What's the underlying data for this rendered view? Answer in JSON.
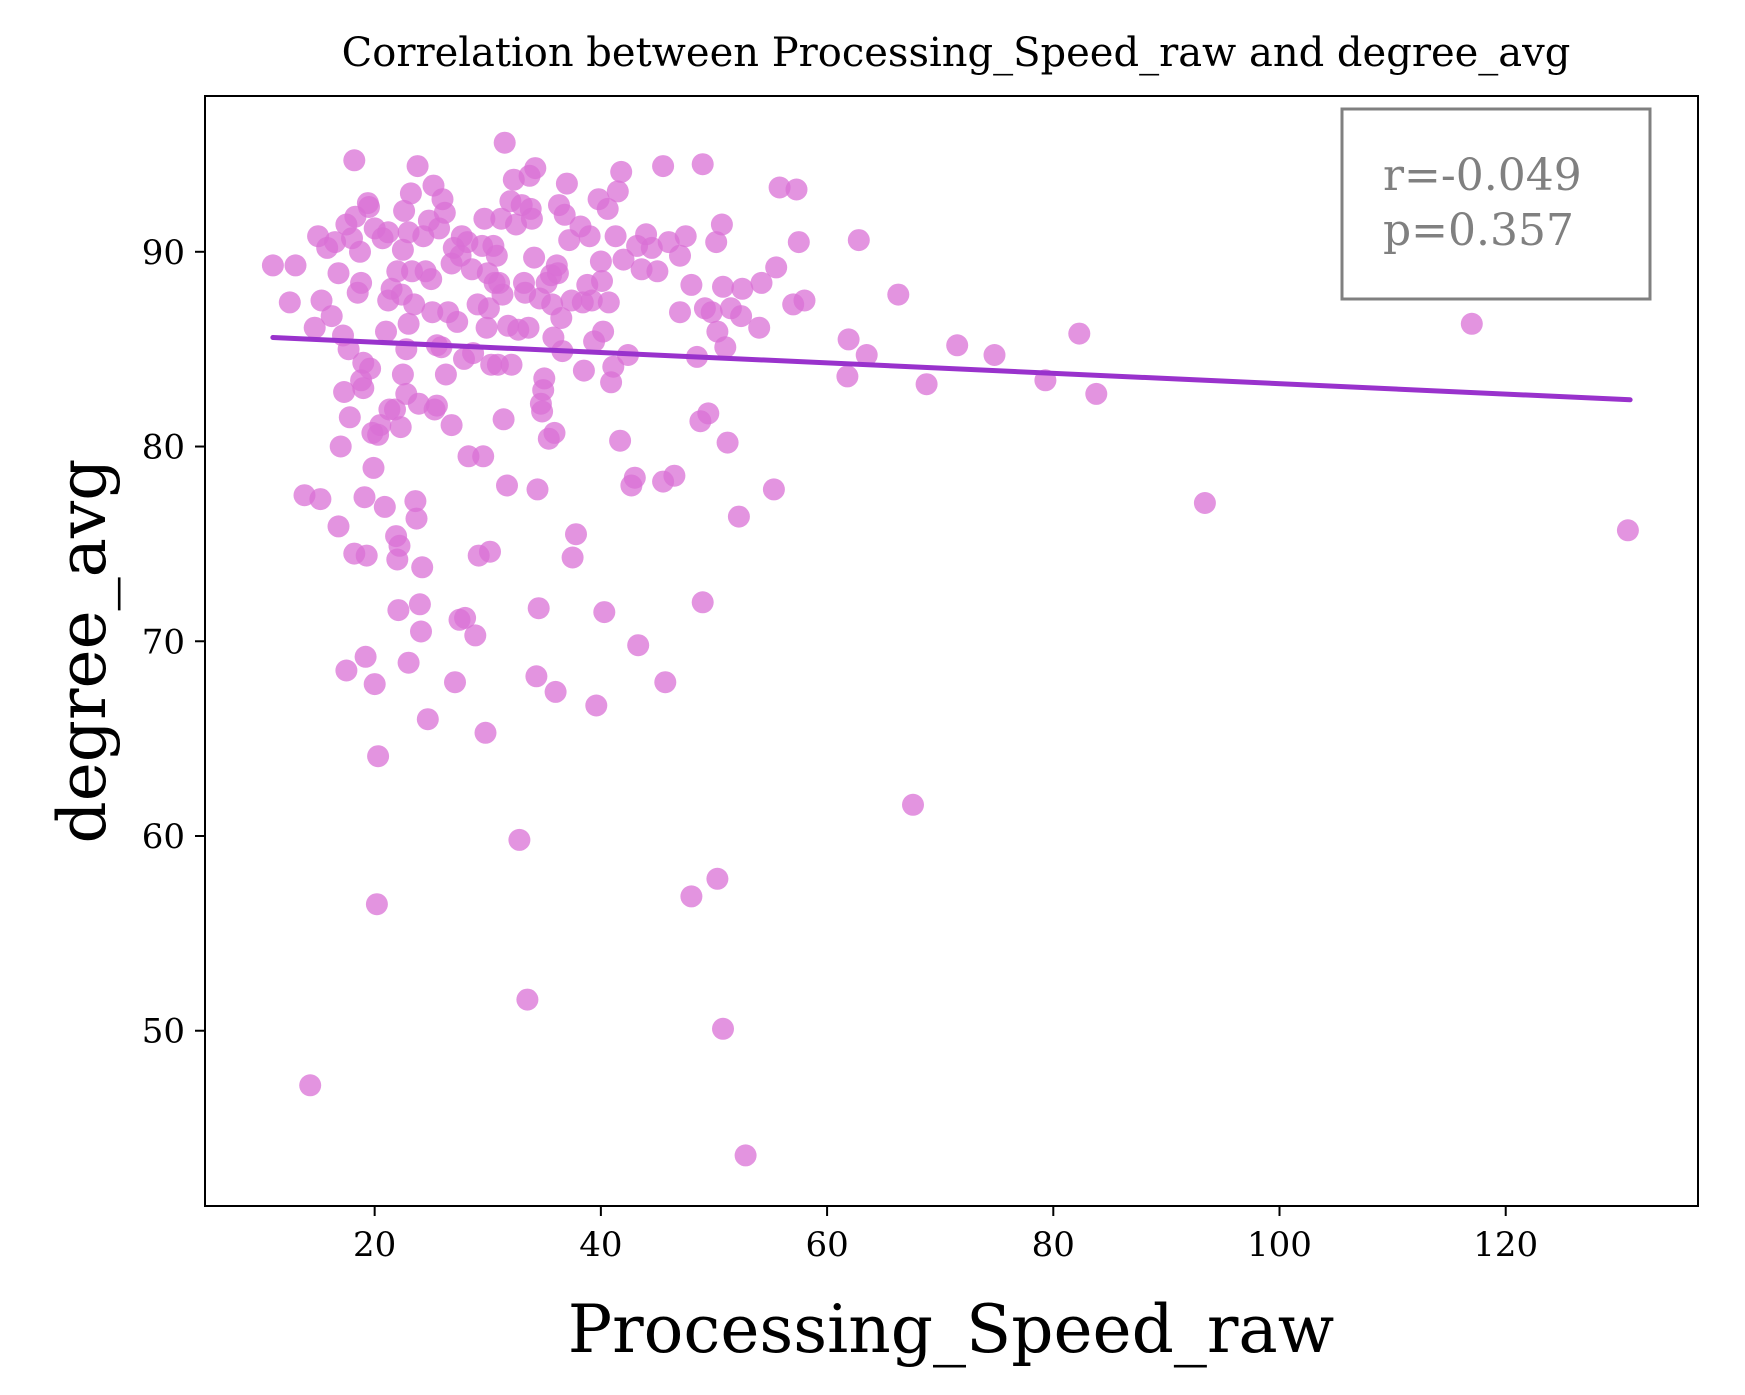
{
  "chart_data": {
    "type": "scatter",
    "title": "Correlation between Processing_Speed_raw and degree_avg",
    "xlabel": "Processing_Speed_raw",
    "ylabel": "degree_avg",
    "xlim": [
      5,
      137
    ],
    "ylim": [
      41,
      98
    ],
    "xticks": [
      20,
      40,
      60,
      80,
      100,
      120
    ],
    "yticks": [
      50,
      60,
      70,
      80,
      90
    ],
    "grid": false,
    "colors": {
      "points": "#da70d6",
      "fit_line": "#9932cc",
      "stats_box_border": "#808080",
      "stats_text": "#808080"
    },
    "stats_box": {
      "line1": "r=-0.049",
      "line2": "p=0.357",
      "placement": "top-right"
    },
    "fit_line": {
      "x": [
        11,
        131
      ],
      "y": [
        85.6,
        82.4
      ]
    },
    "series": [
      {
        "points": [
          [
            11,
            89.3
          ],
          [
            12.5,
            87.4
          ],
          [
            13,
            89.3
          ],
          [
            13.8,
            77.5
          ],
          [
            14.3,
            47.2
          ],
          [
            14.7,
            86.1
          ],
          [
            15,
            90.8
          ],
          [
            15.2,
            77.3
          ],
          [
            15.3,
            87.5
          ],
          [
            15.8,
            90.2
          ],
          [
            16.2,
            86.7
          ],
          [
            16.5,
            90.5
          ],
          [
            16.8,
            88.9
          ],
          [
            16.8,
            75.9
          ],
          [
            17,
            80
          ],
          [
            17.2,
            85.7
          ],
          [
            17.3,
            82.8
          ],
          [
            17.5,
            91.4
          ],
          [
            17.5,
            68.5
          ],
          [
            17.7,
            85
          ],
          [
            17.8,
            81.5
          ],
          [
            18,
            90.7
          ],
          [
            18.2,
            94.7
          ],
          [
            18.2,
            74.5
          ],
          [
            18.3,
            91.8
          ],
          [
            18.5,
            87.9
          ],
          [
            18.7,
            90
          ],
          [
            18.8,
            88.4
          ],
          [
            18.8,
            83.4
          ],
          [
            19,
            84.3
          ],
          [
            19,
            83
          ],
          [
            19.1,
            77.4
          ],
          [
            19.2,
            69.2
          ],
          [
            19.3,
            74.4
          ],
          [
            19.4,
            92.5
          ],
          [
            19.5,
            92.3
          ],
          [
            19.6,
            84
          ],
          [
            19.8,
            80.7
          ],
          [
            19.9,
            78.9
          ],
          [
            20,
            67.8
          ],
          [
            20,
            91.2
          ],
          [
            20.2,
            56.5
          ],
          [
            20.3,
            64.1
          ],
          [
            20.3,
            80.6
          ],
          [
            20.5,
            81.1
          ],
          [
            20.7,
            90.7
          ],
          [
            20.9,
            76.9
          ],
          [
            21,
            85.9
          ],
          [
            21.2,
            91
          ],
          [
            21.2,
            87.5
          ],
          [
            21.3,
            81.9
          ],
          [
            21.5,
            88.1
          ],
          [
            21.8,
            81.9
          ],
          [
            21.9,
            75.4
          ],
          [
            22,
            89
          ],
          [
            22,
            74.2
          ],
          [
            22.1,
            71.6
          ],
          [
            22.2,
            74.9
          ],
          [
            22.3,
            81
          ],
          [
            22.4,
            87.8
          ],
          [
            22.5,
            90.1
          ],
          [
            22.5,
            83.7
          ],
          [
            22.6,
            92.1
          ],
          [
            22.8,
            85
          ],
          [
            22.8,
            82.7
          ],
          [
            23,
            91
          ],
          [
            23,
            86.3
          ],
          [
            23,
            68.9
          ],
          [
            23.2,
            93
          ],
          [
            23.3,
            89
          ],
          [
            23.5,
            87.3
          ],
          [
            23.6,
            77.2
          ],
          [
            23.7,
            76.3
          ],
          [
            23.8,
            94.4
          ],
          [
            23.9,
            82.2
          ],
          [
            24,
            71.9
          ],
          [
            24.1,
            70.5
          ],
          [
            24.2,
            73.8
          ],
          [
            24.3,
            90.8
          ],
          [
            24.5,
            89
          ],
          [
            24.7,
            66
          ],
          [
            24.8,
            91.6
          ],
          [
            25,
            88.6
          ],
          [
            25.1,
            86.9
          ],
          [
            25.2,
            93.4
          ],
          [
            25.3,
            81.9
          ],
          [
            25.5,
            85.2
          ],
          [
            25.5,
            82.1
          ],
          [
            25.7,
            91.2
          ],
          [
            25.9,
            85.1
          ],
          [
            26,
            92.7
          ],
          [
            26.2,
            92
          ],
          [
            26.3,
            83.7
          ],
          [
            26.5,
            86.9
          ],
          [
            26.8,
            89.4
          ],
          [
            26.8,
            81.1
          ],
          [
            27,
            90.2
          ],
          [
            27.1,
            67.9
          ],
          [
            27.3,
            86.4
          ],
          [
            27.5,
            71.1
          ],
          [
            27.6,
            89.8
          ],
          [
            27.7,
            90.8
          ],
          [
            27.9,
            84.5
          ],
          [
            28,
            71.2
          ],
          [
            28.2,
            90.5
          ],
          [
            28.3,
            79.5
          ],
          [
            28.6,
            89.1
          ],
          [
            28.7,
            84.8
          ],
          [
            28.9,
            70.3
          ],
          [
            29.1,
            87.3
          ],
          [
            29.2,
            74.4
          ],
          [
            29.5,
            90.3
          ],
          [
            29.6,
            79.5
          ],
          [
            29.7,
            91.7
          ],
          [
            29.8,
            65.3
          ],
          [
            29.9,
            86.1
          ],
          [
            30,
            88.9
          ],
          [
            30.1,
            87.1
          ],
          [
            30.2,
            74.6
          ],
          [
            30.3,
            84.2
          ],
          [
            30.5,
            90.3
          ],
          [
            30.6,
            88.4
          ],
          [
            30.8,
            89.8
          ],
          [
            30.9,
            84.2
          ],
          [
            31,
            88.4
          ],
          [
            31.2,
            91.7
          ],
          [
            31.3,
            87.8
          ],
          [
            31.4,
            81.4
          ],
          [
            31.5,
            95.6
          ],
          [
            31.7,
            78
          ],
          [
            31.8,
            86.2
          ],
          [
            32,
            92.6
          ],
          [
            32.1,
            84.2
          ],
          [
            32.3,
            93.7
          ],
          [
            32.5,
            91.4
          ],
          [
            32.7,
            86
          ],
          [
            32.8,
            59.8
          ],
          [
            33,
            92.4
          ],
          [
            33.2,
            88.4
          ],
          [
            33.3,
            87.9
          ],
          [
            33.5,
            51.6
          ],
          [
            33.6,
            86.1
          ],
          [
            33.7,
            93.9
          ],
          [
            33.8,
            92.2
          ],
          [
            33.9,
            91.7
          ],
          [
            34.1,
            89.7
          ],
          [
            34.2,
            94.3
          ],
          [
            34.3,
            68.2
          ],
          [
            34.4,
            77.8
          ],
          [
            34.5,
            71.7
          ],
          [
            34.6,
            87.6
          ],
          [
            34.7,
            82.2
          ],
          [
            34.8,
            81.8
          ],
          [
            34.9,
            82.9
          ],
          [
            35,
            83.5
          ],
          [
            35.2,
            88.4
          ],
          [
            35.4,
            80.4
          ],
          [
            35.6,
            88.8
          ],
          [
            35.7,
            87.3
          ],
          [
            35.8,
            85.6
          ],
          [
            35.9,
            80.7
          ],
          [
            36,
            67.4
          ],
          [
            36.1,
            89.3
          ],
          [
            36.2,
            88.9
          ],
          [
            36.3,
            92.4
          ],
          [
            36.5,
            86.6
          ],
          [
            36.6,
            84.9
          ],
          [
            36.8,
            91.9
          ],
          [
            37,
            93.5
          ],
          [
            37.2,
            90.6
          ],
          [
            37.4,
            87.5
          ],
          [
            37.5,
            74.3
          ],
          [
            37.8,
            75.5
          ],
          [
            38.2,
            91.3
          ],
          [
            38.4,
            87.4
          ],
          [
            38.5,
            83.9
          ],
          [
            38.8,
            88.3
          ],
          [
            39,
            90.8
          ],
          [
            39.2,
            87.5
          ],
          [
            39.4,
            85.4
          ],
          [
            39.6,
            66.7
          ],
          [
            39.8,
            92.7
          ],
          [
            40,
            89.5
          ],
          [
            40.1,
            88.5
          ],
          [
            40.2,
            85.9
          ],
          [
            40.3,
            71.5
          ],
          [
            40.6,
            92.2
          ],
          [
            40.7,
            87.4
          ],
          [
            40.9,
            83.3
          ],
          [
            41.1,
            84.1
          ],
          [
            41.3,
            90.8
          ],
          [
            41.5,
            93.1
          ],
          [
            41.7,
            80.3
          ],
          [
            41.8,
            94.1
          ],
          [
            42,
            89.6
          ],
          [
            42.4,
            84.7
          ],
          [
            42.7,
            78
          ],
          [
            43,
            78.4
          ],
          [
            43.2,
            90.3
          ],
          [
            43.3,
            69.8
          ],
          [
            43.6,
            89.1
          ],
          [
            44,
            90.9
          ],
          [
            44.5,
            90.2
          ],
          [
            45,
            89
          ],
          [
            45.5,
            94.4
          ],
          [
            45.5,
            78.2
          ],
          [
            45.7,
            67.9
          ],
          [
            46,
            90.5
          ],
          [
            46.5,
            78.5
          ],
          [
            47,
            89.8
          ],
          [
            47,
            86.9
          ],
          [
            47.5,
            90.8
          ],
          [
            48,
            88.3
          ],
          [
            48,
            56.9
          ],
          [
            48.5,
            84.6
          ],
          [
            48.8,
            81.3
          ],
          [
            49,
            72
          ],
          [
            49,
            94.5
          ],
          [
            49.2,
            87.1
          ],
          [
            49.5,
            81.7
          ],
          [
            49.8,
            86.9
          ],
          [
            50.2,
            90.5
          ],
          [
            50.3,
            85.9
          ],
          [
            50.3,
            57.8
          ],
          [
            50.7,
            91.4
          ],
          [
            50.8,
            88.2
          ],
          [
            50.8,
            50.1
          ],
          [
            51,
            85.1
          ],
          [
            51.2,
            80.2
          ],
          [
            51.5,
            87.1
          ],
          [
            52.2,
            76.4
          ],
          [
            52.4,
            86.7
          ],
          [
            52.5,
            88.1
          ],
          [
            52.8,
            43.6
          ],
          [
            54,
            86.1
          ],
          [
            54.2,
            88.4
          ],
          [
            55.3,
            77.8
          ],
          [
            55.5,
            89.2
          ],
          [
            55.8,
            93.3
          ],
          [
            57,
            87.3
          ],
          [
            57.3,
            93.2
          ],
          [
            57.5,
            90.5
          ],
          [
            58,
            87.5
          ],
          [
            61.8,
            83.6
          ],
          [
            61.9,
            85.5
          ],
          [
            62.8,
            90.6
          ],
          [
            63.5,
            84.7
          ],
          [
            66.3,
            87.8
          ],
          [
            67.6,
            61.6
          ],
          [
            68.8,
            83.2
          ],
          [
            71.5,
            85.2
          ],
          [
            74.8,
            84.7
          ],
          [
            79.3,
            83.4
          ],
          [
            82.3,
            85.8
          ],
          [
            83.8,
            82.7
          ],
          [
            93.4,
            77.1
          ],
          [
            117,
            86.3
          ],
          [
            130.8,
            75.7
          ]
        ]
      }
    ]
  }
}
